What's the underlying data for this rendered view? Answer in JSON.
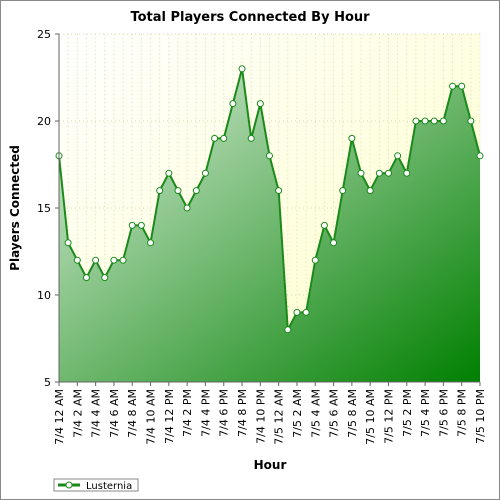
{
  "chart_data": {
    "type": "area",
    "title": "Total Players Connected By Hour",
    "x_label": "Hour",
    "y_label": "Players Connected",
    "categories": [
      "7/4 12 AM",
      null,
      "7/4 2 AM",
      null,
      "7/4 4 AM",
      null,
      "7/4 6 AM",
      null,
      "7/4 8 AM",
      null,
      "7/4 10 AM",
      null,
      "7/4 12 PM",
      null,
      "7/4 2 PM",
      null,
      "7/4 4 PM",
      null,
      "7/4 6 PM",
      null,
      "7/4 8 PM",
      null,
      "7/4 10 PM",
      null,
      "7/5 12 AM",
      null,
      "7/5 2 AM",
      null,
      "7/5 4 AM",
      null,
      "7/5 6 AM",
      null,
      "7/5 8 AM",
      null,
      "7/5 10 AM",
      null,
      "7/5 12 PM",
      null,
      "7/5 2 PM",
      null,
      "7/5 4 PM",
      null,
      "7/5 6 PM",
      null,
      "7/5 8 PM",
      null,
      "7/5 10 PM"
    ],
    "series": [
      {
        "name": "Lusternia",
        "color": "#1a8a1a",
        "values": [
          18,
          13,
          12,
          11,
          12,
          11,
          12,
          12,
          14,
          14,
          13,
          16,
          17,
          16,
          15,
          16,
          17,
          19,
          19,
          21,
          23,
          19,
          21,
          18,
          16,
          8,
          9,
          9,
          12,
          14,
          13,
          16,
          19,
          17,
          16,
          17,
          17,
          18,
          17,
          20,
          20,
          20,
          20,
          22,
          22,
          20,
          18
        ]
      }
    ],
    "ylim": [
      5,
      25
    ],
    "yticks": [
      5,
      10,
      15,
      20,
      25
    ],
    "grid": true,
    "legend": "bottom-left"
  }
}
